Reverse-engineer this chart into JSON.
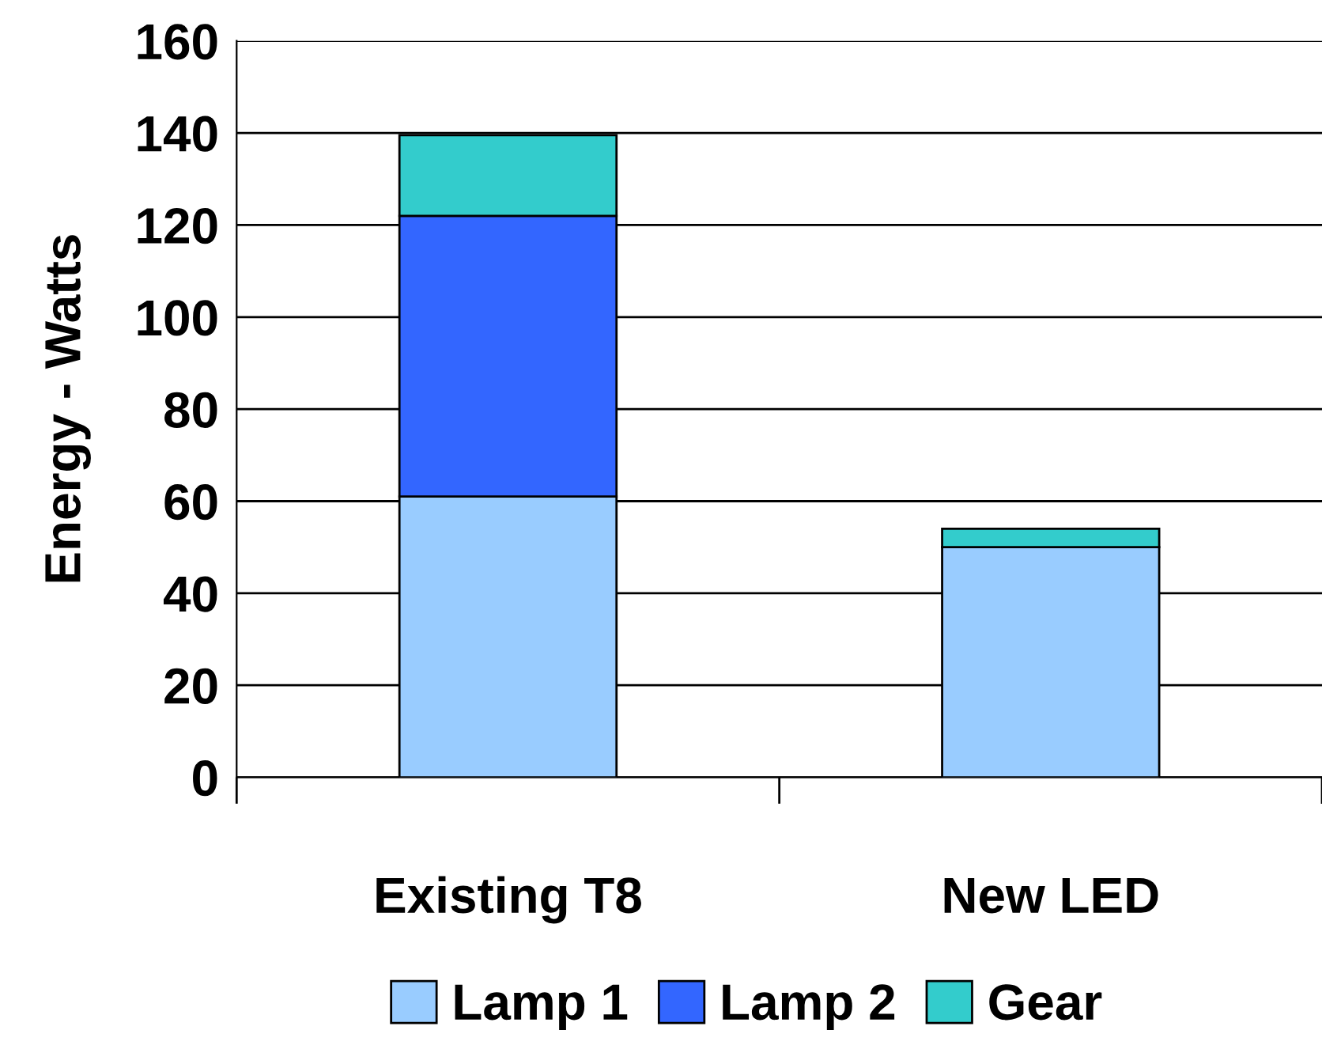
{
  "chart_data": {
    "type": "bar",
    "stacked": true,
    "ylabel": "Energy - Watts",
    "categories": [
      "Existing T8",
      "New LED"
    ],
    "series": [
      {
        "name": "Lamp 1",
        "color": "#99ccff",
        "values": [
          61,
          50
        ]
      },
      {
        "name": "Lamp 2",
        "color": "#3366ff",
        "values": [
          61,
          0
        ]
      },
      {
        "name": "Gear",
        "color": "#33cccc",
        "values": [
          17.5,
          4
        ]
      }
    ],
    "ylim": [
      0,
      160
    ],
    "yticks": [
      0,
      20,
      40,
      60,
      80,
      100,
      120,
      140,
      160
    ],
    "grid": "y",
    "legend": "bottom"
  }
}
